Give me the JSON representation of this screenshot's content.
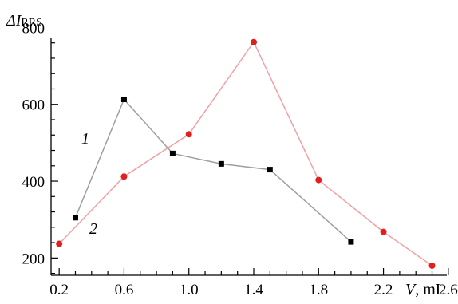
{
  "chart_data": {
    "type": "line",
    "ylabel_symbol": "ΔI",
    "ylabel_subscript": "RRS",
    "xlabel_symbol": "V",
    "xlabel_unit": ", mL",
    "xlim": [
      0.15,
      2.65
    ],
    "ylim": [
      155,
      830
    ],
    "x_ticks": [
      0.2,
      0.6,
      1.0,
      1.4,
      1.8,
      2.2,
      2.6
    ],
    "x_tick_labels": [
      "0.2",
      "0.6",
      "1.0",
      "1.4",
      "1.8",
      "2.2",
      "2.6"
    ],
    "y_ticks": [
      200,
      400,
      600,
      800
    ],
    "y_tick_labels": [
      "200",
      "400",
      "600",
      "800"
    ],
    "y_minor_step": 40,
    "x_minor_step": 0.1,
    "series": [
      {
        "name": "1",
        "marker": "square",
        "line_color": "#9e9e9e",
        "marker_color": "#000000",
        "x": [
          0.3,
          0.6,
          0.9,
          1.2,
          1.5,
          2.0
        ],
        "y": [
          305,
          613,
          472,
          445,
          430,
          242
        ]
      },
      {
        "name": "2",
        "marker": "circle",
        "line_color": "#f2a0a8",
        "marker_color": "#e02020",
        "x": [
          0.2,
          0.6,
          1.0,
          1.4,
          1.8,
          2.2,
          2.5
        ],
        "y": [
          237,
          412,
          522,
          762,
          403,
          268,
          180
        ]
      }
    ]
  }
}
